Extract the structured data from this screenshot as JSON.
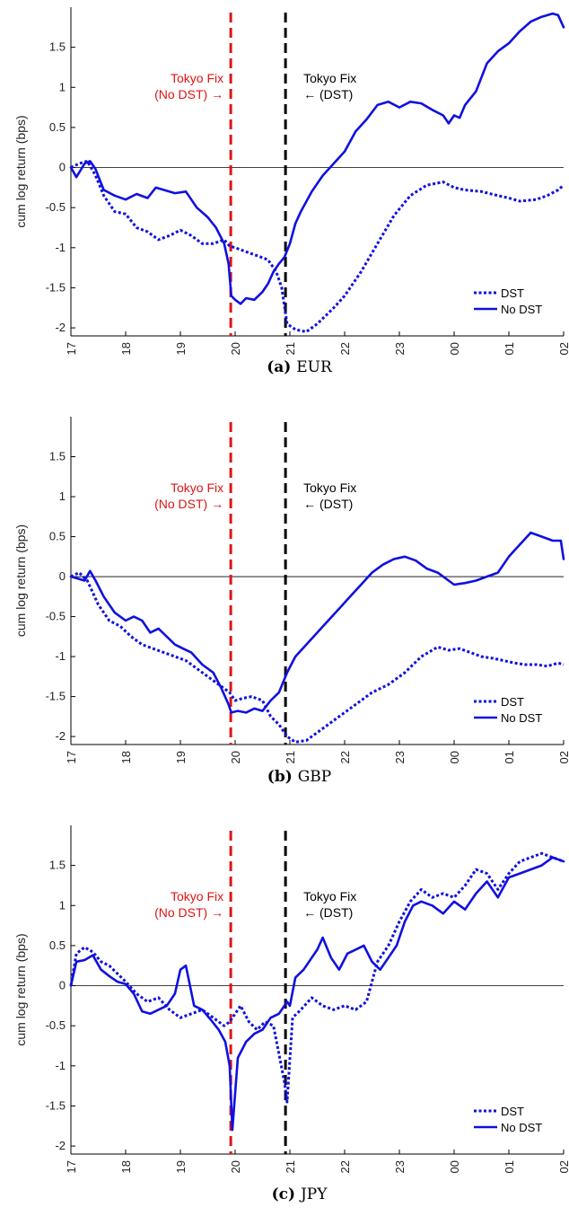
{
  "colors": {
    "series": "#1010e0",
    "fix_no_dst": "#e01414",
    "fix_dst": "#000000",
    "axis": "#000000"
  },
  "chart_data": [
    {
      "type": "line",
      "caption_letter": "(a)",
      "caption_name": "EUR",
      "ylabel": "cum log return (bps)",
      "ylim": [
        -2.1,
        2.0
      ],
      "yticks": [
        -2,
        -1.5,
        -1,
        -0.5,
        0,
        0.5,
        1,
        1.5
      ],
      "ytick_labels": [
        "-2",
        "-1.5",
        "-1",
        "-0.5",
        "0",
        "0.5",
        "1",
        "1.5"
      ],
      "xlim": [
        0,
        9
      ],
      "xticks": [
        0,
        1,
        2,
        3,
        4,
        5,
        6,
        7,
        8,
        9
      ],
      "xtick_labels": [
        "17",
        "18",
        "19",
        "20",
        "21",
        "22",
        "23",
        "00",
        "01",
        "02"
      ],
      "grid": false,
      "legend_position": "bottom-right",
      "zero_line": true,
      "vlines": [
        {
          "x": 2.92,
          "color_key": "fix_no_dst",
          "label_lines": [
            "Tokyo Fix",
            "(No DST) →"
          ],
          "label_side": "left"
        },
        {
          "x": 3.92,
          "color_key": "fix_dst",
          "label_lines": [
            "Tokyo Fix",
            "← (DST)"
          ],
          "label_side": "right"
        }
      ],
      "series": [
        {
          "name": "DST",
          "style": "dotted",
          "x": [
            0,
            0.15,
            0.3,
            0.45,
            0.6,
            0.8,
            1,
            1.2,
            1.4,
            1.6,
            1.8,
            2,
            2.2,
            2.4,
            2.6,
            2.8,
            2.9,
            3.0,
            3.2,
            3.4,
            3.6,
            3.75,
            3.85,
            3.95,
            4.1,
            4.3,
            4.5,
            4.8,
            5.0,
            5.3,
            5.6,
            5.9,
            6.2,
            6.5,
            6.8,
            7.0,
            7.2,
            7.5,
            7.8,
            8.0,
            8.2,
            8.5,
            8.7,
            8.9,
            9.0
          ],
          "y": [
            0,
            0.05,
            0.08,
            -0.1,
            -0.35,
            -0.55,
            -0.58,
            -0.75,
            -0.8,
            -0.9,
            -0.85,
            -0.78,
            -0.85,
            -0.95,
            -0.95,
            -0.9,
            -0.98,
            -1.0,
            -1.05,
            -1.1,
            -1.15,
            -1.3,
            -1.5,
            -1.95,
            -2.02,
            -2.05,
            -1.95,
            -1.75,
            -1.6,
            -1.3,
            -0.95,
            -0.6,
            -0.35,
            -0.22,
            -0.18,
            -0.25,
            -0.28,
            -0.3,
            -0.35,
            -0.38,
            -0.42,
            -0.4,
            -0.35,
            -0.28,
            -0.22
          ]
        },
        {
          "name": "No DST",
          "style": "solid",
          "x": [
            0,
            0.1,
            0.25,
            0.35,
            0.45,
            0.6,
            0.8,
            1.0,
            1.2,
            1.4,
            1.55,
            1.7,
            1.9,
            2.1,
            2.3,
            2.5,
            2.65,
            2.8,
            2.88,
            2.93,
            3.0,
            3.1,
            3.2,
            3.35,
            3.5,
            3.6,
            3.7,
            3.8,
            3.9,
            4.0,
            4.1,
            4.2,
            4.4,
            4.6,
            4.8,
            5.0,
            5.2,
            5.4,
            5.6,
            5.8,
            6.0,
            6.2,
            6.4,
            6.6,
            6.8,
            6.9,
            7.0,
            7.1,
            7.2,
            7.4,
            7.6,
            7.8,
            8.0,
            8.2,
            8.4,
            8.6,
            8.8,
            8.9,
            9.0
          ],
          "y": [
            0,
            -0.12,
            0.05,
            0.08,
            -0.02,
            -0.28,
            -0.35,
            -0.4,
            -0.33,
            -0.38,
            -0.25,
            -0.28,
            -0.32,
            -0.3,
            -0.5,
            -0.62,
            -0.75,
            -0.95,
            -1.2,
            -1.6,
            -1.65,
            -1.7,
            -1.63,
            -1.65,
            -1.55,
            -1.45,
            -1.3,
            -1.2,
            -1.12,
            -0.95,
            -0.7,
            -0.55,
            -0.3,
            -0.1,
            0.05,
            0.2,
            0.45,
            0.6,
            0.78,
            0.82,
            0.75,
            0.82,
            0.8,
            0.72,
            0.65,
            0.55,
            0.65,
            0.62,
            0.78,
            0.95,
            1.3,
            1.45,
            1.55,
            1.7,
            1.82,
            1.88,
            1.92,
            1.9,
            1.75
          ]
        }
      ]
    },
    {
      "type": "line",
      "caption_letter": "(b)",
      "caption_name": "GBP",
      "ylabel": "cum log return (bps)",
      "ylim": [
        -2.1,
        2.0
      ],
      "yticks": [
        -2,
        -1.5,
        -1,
        -0.5,
        0,
        0.5,
        1,
        1.5
      ],
      "ytick_labels": [
        "-2",
        "-1.5",
        "-1",
        "-0.5",
        "0",
        "0.5",
        "1",
        "1.5"
      ],
      "xlim": [
        0,
        9
      ],
      "xticks": [
        0,
        1,
        2,
        3,
        4,
        5,
        6,
        7,
        8,
        9
      ],
      "xtick_labels": [
        "17",
        "18",
        "19",
        "20",
        "21",
        "22",
        "23",
        "00",
        "01",
        "02"
      ],
      "grid": false,
      "legend_position": "bottom-right",
      "zero_line": true,
      "vlines": [
        {
          "x": 2.92,
          "color_key": "fix_no_dst",
          "label_lines": [
            "Tokyo Fix",
            "(No DST) →"
          ],
          "label_side": "left"
        },
        {
          "x": 3.92,
          "color_key": "fix_dst",
          "label_lines": [
            "Tokyo Fix",
            "← (DST)"
          ],
          "label_side": "right"
        }
      ],
      "series": [
        {
          "name": "DST",
          "style": "dotted",
          "x": [
            0,
            0.15,
            0.3,
            0.5,
            0.7,
            0.9,
            1.1,
            1.3,
            1.5,
            1.7,
            1.9,
            2.1,
            2.3,
            2.5,
            2.7,
            2.9,
            3.0,
            3.15,
            3.3,
            3.5,
            3.65,
            3.8,
            3.95,
            4.1,
            4.3,
            4.6,
            4.9,
            5.2,
            5.5,
            5.8,
            6.1,
            6.4,
            6.7,
            6.9,
            7.1,
            7.3,
            7.5,
            7.7,
            7.9,
            8.1,
            8.3,
            8.5,
            8.7,
            8.9,
            9.0
          ],
          "y": [
            0,
            0.05,
            -0.05,
            -0.35,
            -0.55,
            -0.62,
            -0.75,
            -0.85,
            -0.9,
            -0.95,
            -1.0,
            -1.05,
            -1.15,
            -1.25,
            -1.35,
            -1.45,
            -1.55,
            -1.52,
            -1.5,
            -1.55,
            -1.75,
            -1.85,
            -2.0,
            -2.07,
            -2.05,
            -1.9,
            -1.75,
            -1.6,
            -1.45,
            -1.35,
            -1.2,
            -1.0,
            -0.88,
            -0.92,
            -0.9,
            -0.95,
            -1.0,
            -1.02,
            -1.05,
            -1.08,
            -1.1,
            -1.1,
            -1.12,
            -1.08,
            -1.1
          ]
        },
        {
          "name": "No DST",
          "style": "solid",
          "x": [
            0,
            0.1,
            0.25,
            0.35,
            0.45,
            0.6,
            0.8,
            1.0,
            1.15,
            1.3,
            1.45,
            1.6,
            1.75,
            1.9,
            2.05,
            2.2,
            2.4,
            2.6,
            2.75,
            2.88,
            2.93,
            3.05,
            3.2,
            3.35,
            3.5,
            3.65,
            3.8,
            3.95,
            4.1,
            4.3,
            4.5,
            4.7,
            4.9,
            5.1,
            5.3,
            5.5,
            5.7,
            5.9,
            6.1,
            6.3,
            6.5,
            6.7,
            6.9,
            7.0,
            7.2,
            7.4,
            7.6,
            7.8,
            8.0,
            8.2,
            8.4,
            8.6,
            8.8,
            8.95,
            9.0
          ],
          "y": [
            0,
            -0.02,
            -0.05,
            0.07,
            -0.05,
            -0.25,
            -0.45,
            -0.55,
            -0.5,
            -0.55,
            -0.7,
            -0.65,
            -0.75,
            -0.85,
            -0.9,
            -0.95,
            -1.1,
            -1.2,
            -1.4,
            -1.6,
            -1.7,
            -1.68,
            -1.7,
            -1.65,
            -1.68,
            -1.55,
            -1.45,
            -1.2,
            -1.0,
            -0.85,
            -0.7,
            -0.55,
            -0.4,
            -0.25,
            -0.1,
            0.05,
            0.15,
            0.22,
            0.25,
            0.2,
            0.1,
            0.05,
            -0.05,
            -0.1,
            -0.08,
            -0.05,
            0.0,
            0.05,
            0.25,
            0.4,
            0.55,
            0.5,
            0.45,
            0.45,
            0.22
          ]
        }
      ]
    },
    {
      "type": "line",
      "caption_letter": "(c)",
      "caption_name": "JPY",
      "ylabel": "cum log return (bps)",
      "ylim": [
        -2.1,
        2.0
      ],
      "yticks": [
        -2,
        -1.5,
        -1,
        -0.5,
        0,
        0.5,
        1,
        1.5
      ],
      "ytick_labels": [
        "-2",
        "-1.5",
        "-1",
        "-0.5",
        "0",
        "0.5",
        "1",
        "1.5"
      ],
      "xlim": [
        0,
        9
      ],
      "xticks": [
        0,
        1,
        2,
        3,
        4,
        5,
        6,
        7,
        8,
        9
      ],
      "xtick_labels": [
        "17",
        "18",
        "19",
        "20",
        "21",
        "22",
        "23",
        "00",
        "01",
        "02"
      ],
      "grid": false,
      "legend_position": "bottom-right",
      "zero_line": true,
      "vlines": [
        {
          "x": 2.92,
          "color_key": "fix_no_dst",
          "label_lines": [
            "Tokyo Fix",
            "(No DST) →"
          ],
          "label_side": "left"
        },
        {
          "x": 3.92,
          "color_key": "fix_dst",
          "label_lines": [
            "Tokyo Fix",
            "← (DST)"
          ],
          "label_side": "right"
        }
      ],
      "series": [
        {
          "name": "DST",
          "style": "dotted",
          "x": [
            0,
            0.1,
            0.25,
            0.4,
            0.55,
            0.7,
            0.85,
            1.0,
            1.2,
            1.4,
            1.6,
            1.8,
            2.0,
            2.2,
            2.4,
            2.6,
            2.8,
            2.9,
            3.0,
            3.1,
            3.25,
            3.4,
            3.55,
            3.7,
            3.8,
            3.9,
            3.95,
            4.05,
            4.2,
            4.4,
            4.6,
            4.8,
            5.0,
            5.2,
            5.4,
            5.6,
            5.8,
            6.0,
            6.2,
            6.4,
            6.6,
            6.8,
            7.0,
            7.2,
            7.4,
            7.6,
            7.8,
            8.0,
            8.2,
            8.4,
            8.6,
            8.8,
            9.0
          ],
          "y": [
            0,
            0.4,
            0.48,
            0.42,
            0.3,
            0.25,
            0.15,
            0.05,
            -0.1,
            -0.2,
            -0.15,
            -0.3,
            -0.4,
            -0.35,
            -0.3,
            -0.4,
            -0.5,
            -0.45,
            -0.35,
            -0.25,
            -0.45,
            -0.55,
            -0.45,
            -0.5,
            -0.85,
            -1.2,
            -1.45,
            -0.4,
            -0.3,
            -0.15,
            -0.25,
            -0.3,
            -0.25,
            -0.3,
            -0.2,
            0.3,
            0.5,
            0.8,
            1.05,
            1.2,
            1.1,
            1.15,
            1.1,
            1.25,
            1.45,
            1.4,
            1.2,
            1.4,
            1.55,
            1.6,
            1.65,
            1.6,
            1.55
          ]
        },
        {
          "name": "No DST",
          "style": "solid",
          "x": [
            0,
            0.1,
            0.25,
            0.4,
            0.55,
            0.7,
            0.85,
            1.0,
            1.15,
            1.3,
            1.45,
            1.6,
            1.75,
            1.9,
            2.0,
            2.1,
            2.25,
            2.4,
            2.55,
            2.7,
            2.82,
            2.9,
            2.95,
            3.05,
            3.2,
            3.35,
            3.5,
            3.65,
            3.8,
            3.95,
            4.0,
            4.1,
            4.25,
            4.4,
            4.5,
            4.6,
            4.75,
            4.9,
            5.05,
            5.2,
            5.35,
            5.5,
            5.65,
            5.8,
            5.95,
            6.1,
            6.25,
            6.4,
            6.6,
            6.8,
            7.0,
            7.2,
            7.4,
            7.6,
            7.8,
            8.0,
            8.2,
            8.4,
            8.6,
            8.8,
            9.0
          ],
          "y": [
            0,
            0.3,
            0.32,
            0.38,
            0.2,
            0.12,
            0.05,
            0.02,
            -0.1,
            -0.32,
            -0.35,
            -0.3,
            -0.25,
            -0.1,
            0.2,
            0.25,
            -0.25,
            -0.3,
            -0.42,
            -0.55,
            -0.7,
            -1.0,
            -1.8,
            -0.9,
            -0.7,
            -0.6,
            -0.55,
            -0.4,
            -0.35,
            -0.2,
            -0.25,
            0.1,
            0.2,
            0.35,
            0.45,
            0.6,
            0.35,
            0.2,
            0.4,
            0.45,
            0.5,
            0.3,
            0.2,
            0.35,
            0.5,
            0.8,
            1.0,
            1.05,
            1.0,
            0.9,
            1.05,
            0.95,
            1.15,
            1.3,
            1.1,
            1.35,
            1.4,
            1.45,
            1.5,
            1.6,
            1.55
          ]
        }
      ]
    }
  ]
}
